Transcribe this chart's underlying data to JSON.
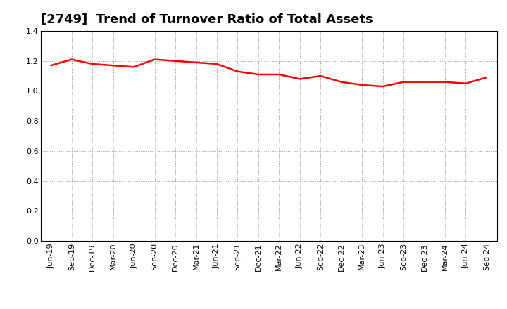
{
  "title": "[2749]  Trend of Turnover Ratio of Total Assets",
  "labels": [
    "Jun-19",
    "Sep-19",
    "Dec-19",
    "Mar-20",
    "Jun-20",
    "Sep-20",
    "Dec-20",
    "Mar-21",
    "Jun-21",
    "Sep-21",
    "Dec-21",
    "Mar-22",
    "Jun-22",
    "Sep-22",
    "Dec-22",
    "Mar-23",
    "Jun-23",
    "Sep-23",
    "Dec-23",
    "Mar-24",
    "Jun-24",
    "Sep-24"
  ],
  "values": [
    1.17,
    1.21,
    1.18,
    1.17,
    1.16,
    1.21,
    1.2,
    1.19,
    1.18,
    1.13,
    1.11,
    1.11,
    1.08,
    1.1,
    1.06,
    1.04,
    1.03,
    1.06,
    1.06,
    1.06,
    1.05,
    1.09
  ],
  "ylim": [
    0.0,
    1.4
  ],
  "yticks": [
    0.0,
    0.2,
    0.4,
    0.6,
    0.8,
    1.0,
    1.2,
    1.4
  ],
  "line_color": "#ff0000",
  "line_width": 1.8,
  "bg_color": "#ffffff",
  "plot_bg_color": "#ffffff",
  "grid_color": "#999999",
  "title_fontsize": 13,
  "tick_fontsize": 8
}
